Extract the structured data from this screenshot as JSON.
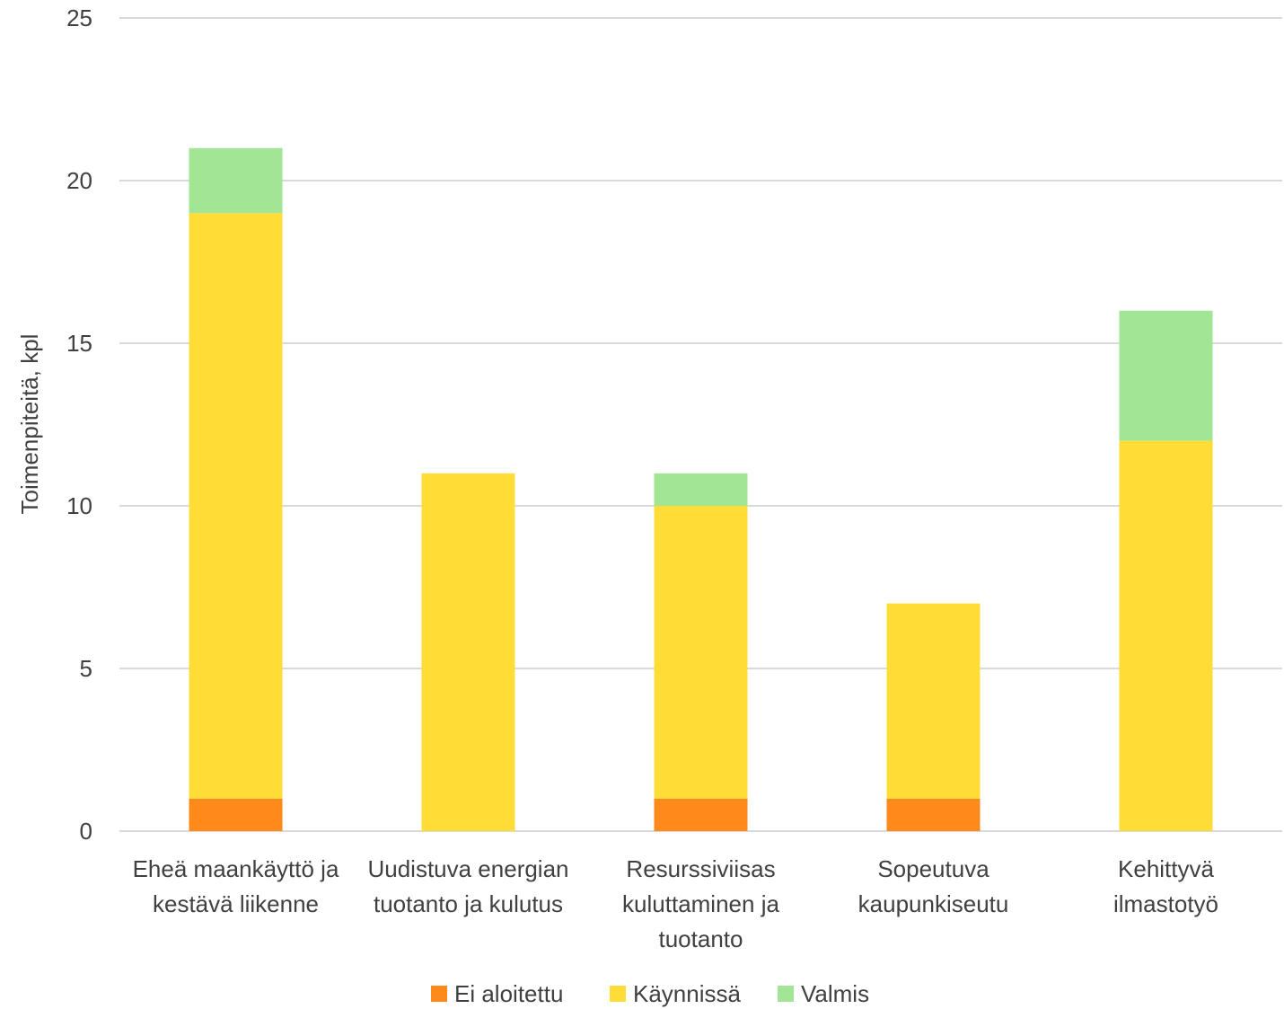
{
  "chart_data": {
    "type": "bar",
    "stacked": true,
    "categories": [
      [
        "Eheä maankäyttö ja",
        "kestävä liikenne"
      ],
      [
        "Uudistuva energian",
        "tuotanto ja kulutus"
      ],
      [
        "Resurssiviisas",
        "kuluttaminen ja",
        "tuotanto"
      ],
      [
        "Sopeutuva",
        "kaupunkiseutu"
      ],
      [
        "Kehittyvä",
        "ilmastotyö"
      ]
    ],
    "series": [
      {
        "name": "Ei aloitettu",
        "color": "#FF8A1C",
        "values": [
          1,
          0,
          1,
          1,
          0
        ]
      },
      {
        "name": "Käynnissä",
        "color": "#FFDC36",
        "values": [
          18,
          11,
          9,
          6,
          12
        ]
      },
      {
        "name": "Valmis",
        "color": "#A2E594",
        "values": [
          2,
          0,
          1,
          0,
          4
        ]
      }
    ],
    "title": "",
    "xlabel": "",
    "ylabel": "Toimenpiteitä, kpl",
    "ylim": [
      0,
      25
    ],
    "yticks": [
      0,
      5,
      10,
      15,
      20,
      25
    ],
    "grid": true,
    "legend_position": "bottom",
    "gridline_color": "#D9D9D9"
  }
}
